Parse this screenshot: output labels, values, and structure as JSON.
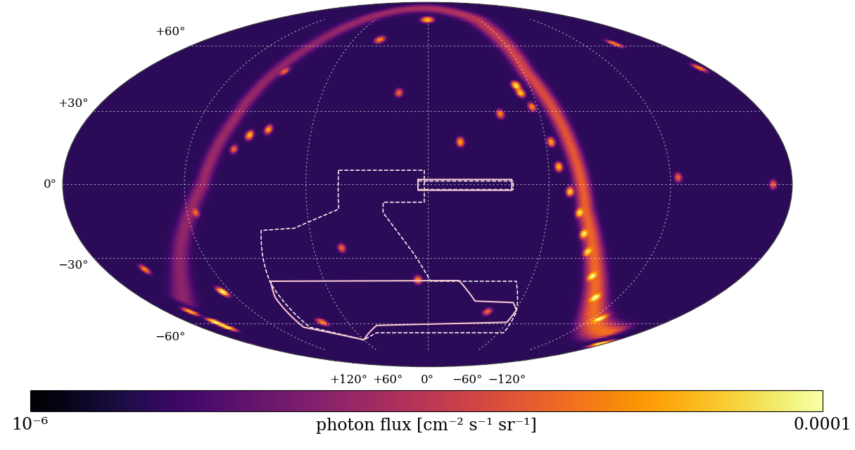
{
  "chart_data": {
    "type": "sky_map",
    "xlim": [
      180,
      -180
    ],
    "ylim": [
      -90,
      90
    ],
    "xticks": [
      {
        "value": 120,
        "label": "+120°"
      },
      {
        "value": 60,
        "label": "+60°"
      },
      {
        "value": 0,
        "label": "0°"
      },
      {
        "value": -60,
        "label": "−60°"
      },
      {
        "value": -120,
        "label": "−120°"
      }
    ],
    "yticks": [
      {
        "value": 60,
        "label": "+60°"
      },
      {
        "value": 30,
        "label": "+30°"
      },
      {
        "value": 0,
        "label": "0°"
      },
      {
        "value": -30,
        "label": "−30°"
      },
      {
        "value": -60,
        "label": "−60°"
      }
    ],
    "grid": true,
    "background_flux": 2e-06,
    "galactic_plane": {
      "lon": [
        155,
        130,
        111,
        102,
        87,
        0,
        -57,
        -62,
        -72,
        -79,
        -99,
        -154
      ],
      "lat": [
        -48,
        -26,
        0,
        26,
        61,
        83,
        75,
        47,
        17,
        -11,
        -41,
        -65
      ],
      "flux": [
        4e-06,
        4e-06,
        5e-06,
        5e-06,
        4e-06,
        6e-06,
        8e-06,
        1.2e-05,
        1.5e-05,
        1.8e-05,
        2e-05,
        2.2e-05
      ]
    },
    "sources": {
      "lon": [
        -52.2,
        -53.3,
        -62.8,
        -65.1,
        -70.4,
        -76.0,
        -80.3,
        -85.2,
        -94.2,
        -105.8,
        -126.3,
        -175.8,
        -57.1,
        124.8,
        159.0,
        158.6,
        163.0,
        91.1,
        82.2,
        97.3,
        115.7,
        0.0,
        38.5,
        -16.7,
        -39.0,
        -175.0,
        -145.9,
        -123.8,
        78.9,
        5.5,
        45.1,
        157.4,
        89.7,
        -170.6,
        -41.5,
        16.3
      ],
      "lat": [
        40.9,
        37.8,
        17.1,
        7.1,
        -2.8,
        -11.3,
        -19.9,
        -27.3,
        -37.8,
        -47.4,
        -57.6,
        -71.1,
        31.7,
        -44.8,
        -59.4,
        -62.0,
        -54.1,
        19.9,
        22.2,
        14.2,
        -11.3,
        74.7,
        63.1,
        17.1,
        28.7,
        49.0,
        61.0,
        2.8,
        -59.4,
        -39.4,
        -25.8,
        -34.8,
        47.4,
        0.0,
        -54.1,
        37.8
      ],
      "flux": [
        8e-05,
        6e-05,
        4e-05,
        5e-05,
        6e-05,
        7e-05,
        8e-05,
        7e-05,
        9e-05,
        0.0001,
        0.0001,
        8e-05,
        3e-05,
        0.0001,
        0.0001,
        8e-05,
        5e-05,
        5e-05,
        4e-05,
        2e-05,
        2e-05,
        5e-05,
        3e-05,
        4e-05,
        3e-05,
        3e-05,
        3e-05,
        2e-05,
        3e-05,
        3e-05,
        2e-05,
        3e-05,
        2e-05,
        2e-05,
        2e-05,
        2e-05
      ]
    },
    "regions": [
      {
        "color": "#ffffff",
        "line_style": "dashed",
        "lon": [
          44.0,
          1.6,
          1.6,
          22.0,
          22.2,
          14.6,
          6.8,
          -1.85,
          -51.7,
          -61.2,
          -64.7,
          43.1,
          59.9,
          93.2,
          92.1,
          88.3,
          84.8,
          67.7,
          44.2
        ],
        "lat": [
          5.7,
          5.7,
          -7.1,
          -7.1,
          -11.3,
          -19.9,
          -28.7,
          -40.0,
          -40.0,
          -54.1,
          -65.0,
          -65.0,
          -69.0,
          -62.0,
          -40.9,
          -28.7,
          -18.5,
          -17.6,
          -9.9
        ]
      },
      {
        "color": "#ffffff",
        "line_style": "dashed",
        "lon": [
          4.7,
          -42.3,
          -42.3,
          4.7
        ],
        "lat": [
          1.4,
          1.4,
          -2.0,
          -2.0
        ]
      },
      {
        "color": "#f7c6d0",
        "line_style": "solid",
        "lon": [
          91.3,
          -18.4,
          -30.5,
          -55.5,
          -60.6,
          -59.8,
          39.5,
          59.9,
          98.2,
          95.8
        ],
        "lat": [
          -40.0,
          -39.7,
          -49.0,
          -49.7,
          -53.4,
          -59.4,
          -61.0,
          -69.0,
          -62.0,
          -47.4
        ]
      },
      {
        "color": "#f7c6d0",
        "line_style": "solid",
        "lon": [
          4.7,
          -41.6,
          -41.6,
          4.7
        ],
        "lat": [
          2.0,
          2.0,
          -2.3,
          -2.3
        ]
      }
    ],
    "colorbar": {
      "label": "photon flux [cm⁻² s⁻¹ sr⁻¹]",
      "range": [
        1e-06,
        0.0001
      ],
      "log": true,
      "ticks": [
        {
          "value": 1e-06,
          "label": "10⁻⁶"
        },
        0.0001
      ]
    }
  }
}
